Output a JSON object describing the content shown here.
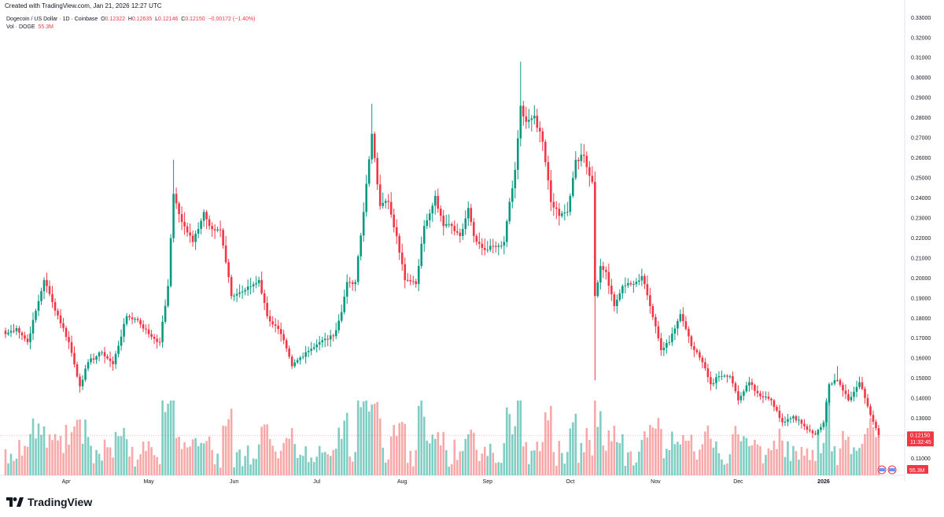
{
  "header": {
    "created": "Created with TradingView.com, Jan 21, 2026 12:27 UTC"
  },
  "legend": {
    "symbol": "Dogecoin / US Dollar · 1D · Coinbase",
    "o_label": "O",
    "o": "0.12322",
    "h_label": "H",
    "h": "0.12635",
    "l_label": "L",
    "l": "0.12146",
    "c_label": "C",
    "c": "0.12150",
    "change": "−0.00172 (−1.40%)",
    "vol_label": "Vol · DOGE",
    "vol": "55.3M"
  },
  "price_badge": {
    "price": "0.12150",
    "countdown": "11:32:45"
  },
  "volume_badge": "55.3M",
  "logo": {
    "text": "TradingView"
  },
  "colors": {
    "up": "#089981",
    "down": "#f23645",
    "up_vol": "#7fcdc3",
    "down_vol": "#f7a9a9",
    "grid": "#f0f3fa",
    "axis_text": "#131722"
  },
  "chart_data": {
    "type": "candlestick",
    "title": "Dogecoin / US Dollar · 1D · Coinbase",
    "y_ticks": [
      "0.11000",
      "0.12000",
      "0.13000",
      "0.14000",
      "0.15000",
      "0.16000",
      "0.17000",
      "0.18000",
      "0.19000",
      "0.20000",
      "0.21000",
      "0.22000",
      "0.23000",
      "0.24000",
      "0.25000",
      "0.26000",
      "0.27000",
      "0.28000",
      "0.29000",
      "0.30000",
      "0.31000",
      "0.32000",
      "0.33000"
    ],
    "ylim": [
      0.1045,
      0.3315
    ],
    "x_ticks": [
      "Apr",
      "May",
      "Jun",
      "Jul",
      "Aug",
      "Sep",
      "Oct",
      "Nov",
      "Dec",
      "2026"
    ],
    "x_tick_dates": [
      "2025-04-01",
      "2025-05-01",
      "2025-06-01",
      "2025-07-01",
      "2025-08-01",
      "2025-09-01",
      "2025-10-01",
      "2025-11-01",
      "2025-12-01",
      "2026-01-01"
    ],
    "date_range": [
      "2025-03-10",
      "2026-01-21"
    ],
    "last_close": 0.1215,
    "grid": false,
    "close_anchors": [
      [
        "2025-03-10",
        0.172
      ],
      [
        "2025-03-14",
        0.175
      ],
      [
        "2025-03-18",
        0.168
      ],
      [
        "2025-03-24",
        0.199
      ],
      [
        "2025-03-27",
        0.188
      ],
      [
        "2025-04-02",
        0.168
      ],
      [
        "2025-04-06",
        0.146
      ],
      [
        "2025-04-09",
        0.158
      ],
      [
        "2025-04-14",
        0.163
      ],
      [
        "2025-04-18",
        0.157
      ],
      [
        "2025-04-23",
        0.181
      ],
      [
        "2025-04-27",
        0.179
      ],
      [
        "2025-05-01",
        0.172
      ],
      [
        "2025-05-05",
        0.168
      ],
      [
        "2025-05-08",
        0.196
      ],
      [
        "2025-05-10",
        0.242
      ],
      [
        "2025-05-13",
        0.228
      ],
      [
        "2025-05-17",
        0.218
      ],
      [
        "2025-05-21",
        0.233
      ],
      [
        "2025-05-23",
        0.226
      ],
      [
        "2025-05-27",
        0.224
      ],
      [
        "2025-05-31",
        0.191
      ],
      [
        "2025-06-05",
        0.194
      ],
      [
        "2025-06-10",
        0.199
      ],
      [
        "2025-06-13",
        0.181
      ],
      [
        "2025-06-18",
        0.172
      ],
      [
        "2025-06-22",
        0.156
      ],
      [
        "2025-06-27",
        0.163
      ],
      [
        "2025-07-02",
        0.168
      ],
      [
        "2025-07-07",
        0.171
      ],
      [
        "2025-07-10",
        0.183
      ],
      [
        "2025-07-12",
        0.198
      ],
      [
        "2025-07-15",
        0.198
      ],
      [
        "2025-07-18",
        0.233
      ],
      [
        "2025-07-21",
        0.272
      ],
      [
        "2025-07-24",
        0.236
      ],
      [
        "2025-07-27",
        0.238
      ],
      [
        "2025-07-30",
        0.221
      ],
      [
        "2025-08-02",
        0.199
      ],
      [
        "2025-08-06",
        0.197
      ],
      [
        "2025-08-09",
        0.226
      ],
      [
        "2025-08-13",
        0.241
      ],
      [
        "2025-08-16",
        0.226
      ],
      [
        "2025-08-19",
        0.226
      ],
      [
        "2025-08-22",
        0.221
      ],
      [
        "2025-08-25",
        0.235
      ],
      [
        "2025-08-27",
        0.221
      ],
      [
        "2025-08-31",
        0.214
      ],
      [
        "2025-09-03",
        0.216
      ],
      [
        "2025-09-07",
        0.218
      ],
      [
        "2025-09-09",
        0.238
      ],
      [
        "2025-09-11",
        0.254
      ],
      [
        "2025-09-13",
        0.286
      ],
      [
        "2025-09-15",
        0.278
      ],
      [
        "2025-09-18",
        0.281
      ],
      [
        "2025-09-21",
        0.268
      ],
      [
        "2025-09-24",
        0.238
      ],
      [
        "2025-09-27",
        0.231
      ],
      [
        "2025-09-30",
        0.233
      ],
      [
        "2025-10-03",
        0.259
      ],
      [
        "2025-10-06",
        0.261
      ],
      [
        "2025-10-09",
        0.248
      ],
      [
        "2025-10-10",
        0.191
      ],
      [
        "2025-10-12",
        0.206
      ],
      [
        "2025-10-14",
        0.203
      ],
      [
        "2025-10-17",
        0.186
      ],
      [
        "2025-10-20",
        0.196
      ],
      [
        "2025-10-24",
        0.197
      ],
      [
        "2025-10-27",
        0.201
      ],
      [
        "2025-10-30",
        0.186
      ],
      [
        "2025-11-03",
        0.164
      ],
      [
        "2025-11-06",
        0.168
      ],
      [
        "2025-11-10",
        0.182
      ],
      [
        "2025-11-14",
        0.166
      ],
      [
        "2025-11-18",
        0.158
      ],
      [
        "2025-11-21",
        0.147
      ],
      [
        "2025-11-24",
        0.151
      ],
      [
        "2025-11-28",
        0.151
      ],
      [
        "2025-12-01",
        0.139
      ],
      [
        "2025-12-05",
        0.148
      ],
      [
        "2025-12-09",
        0.141
      ],
      [
        "2025-12-13",
        0.139
      ],
      [
        "2025-12-17",
        0.128
      ],
      [
        "2025-12-21",
        0.131
      ],
      [
        "2025-12-25",
        0.126
      ],
      [
        "2025-12-29",
        0.122
      ],
      [
        "2026-01-01",
        0.128
      ],
      [
        "2026-01-03",
        0.147
      ],
      [
        "2026-01-06",
        0.149
      ],
      [
        "2026-01-10",
        0.139
      ],
      [
        "2026-01-14",
        0.148
      ],
      [
        "2026-01-17",
        0.136
      ],
      [
        "2026-01-21",
        0.1215
      ]
    ],
    "wick_extremes": [
      {
        "date": "2025-05-10",
        "high": 0.259
      },
      {
        "date": "2025-07-21",
        "high": 0.287
      },
      {
        "date": "2025-09-13",
        "high": 0.308
      },
      {
        "date": "2025-10-10",
        "low": 0.149
      },
      {
        "date": "2026-01-06",
        "high": 0.156
      }
    ]
  }
}
